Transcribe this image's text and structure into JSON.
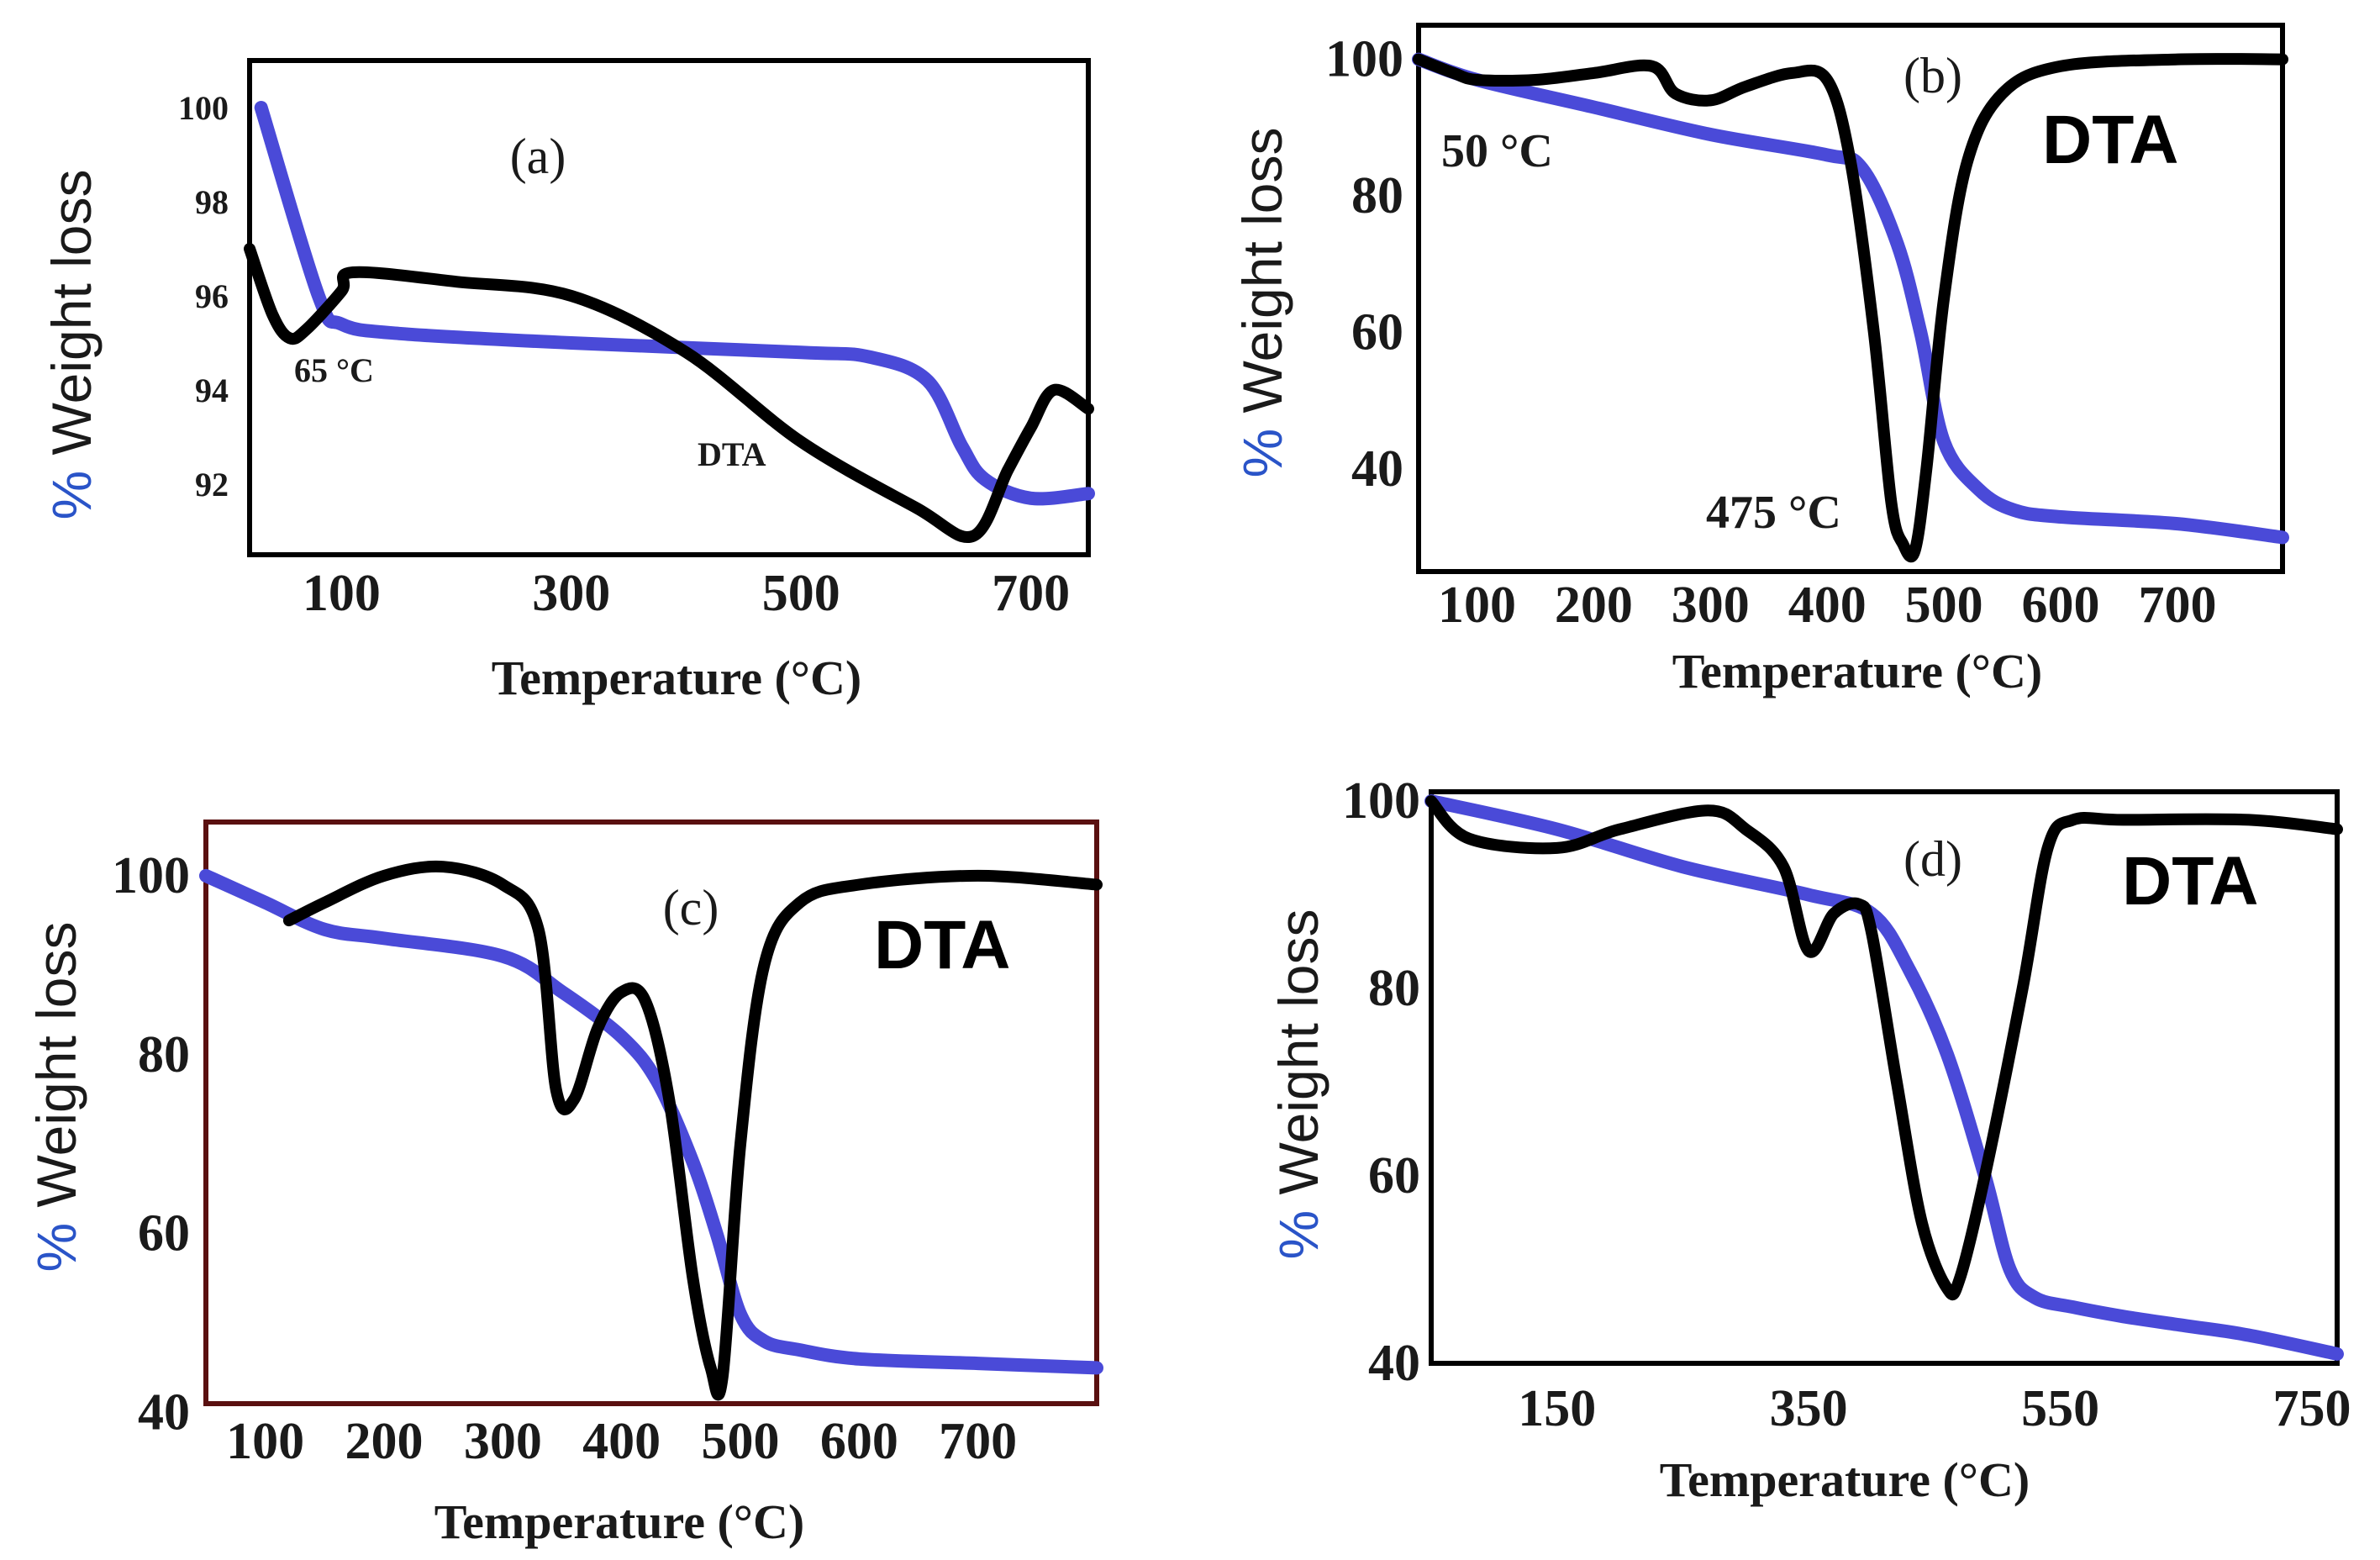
{
  "chart_data": [
    {
      "id": "a",
      "type": "line",
      "panel_label": "(a)",
      "xlabel": "Temperature (°C)",
      "ylabel": "% Weight loss",
      "xlim": [
        20,
        750
      ],
      "ylim": [
        90.5,
        101
      ],
      "xticks": [
        100,
        300,
        500,
        700
      ],
      "xtick_labels": [
        "100",
        "300",
        "500",
        "700"
      ],
      "yticks": [
        100,
        98,
        96,
        94,
        92
      ],
      "ytick_labels": [
        "100",
        "98",
        "96",
        "94",
        "92"
      ],
      "annotations": [
        {
          "text": "65 °C",
          "x": 60,
          "y": 94.6
        },
        {
          "text": "DTA",
          "x": 440,
          "y": 92.5
        }
      ],
      "series": [
        {
          "name": "TGA",
          "color": "#4a4ad8",
          "x": [
            30,
            80,
            100,
            150,
            300,
            500,
            560,
            610,
            640,
            660,
            700,
            750
          ],
          "y": [
            100,
            96,
            95.4,
            95.2,
            95.0,
            94.8,
            94.7,
            94.2,
            92.8,
            92.1,
            91.7,
            91.8
          ]
        },
        {
          "name": "DTA",
          "color": "#000000",
          "x": [
            20,
            40,
            55,
            70,
            100,
            110,
            200,
            300,
            400,
            500,
            600,
            650,
            680,
            700,
            720,
            750
          ],
          "y": [
            97,
            95.6,
            95.1,
            95.3,
            96.1,
            96.5,
            96.3,
            96.0,
            94.8,
            92.9,
            91.5,
            90.9,
            92.3,
            93.2,
            94.0,
            93.6
          ]
        }
      ]
    },
    {
      "id": "b",
      "type": "line",
      "panel_label": "(b)",
      "dta_label": "DTA",
      "xlabel": "Temperature (°C)",
      "ylabel": "% Weight loss",
      "xlim": [
        50,
        790
      ],
      "ylim": [
        25,
        105
      ],
      "xticks": [
        100,
        200,
        300,
        400,
        500,
        600,
        700
      ],
      "xtick_labels": [
        "100",
        "200",
        "300",
        "400",
        "500",
        "600",
        "700"
      ],
      "yticks": [
        100,
        80,
        60,
        40
      ],
      "ytick_labels": [
        "100",
        "80",
        "60",
        "40"
      ],
      "annotations": [
        {
          "text": "50 °C",
          "x": 60,
          "y": 88
        },
        {
          "text": "475 °C",
          "x": 390,
          "y": 29
        }
      ],
      "series": [
        {
          "name": "TGA",
          "color": "#4a4ad8",
          "x": [
            50,
            100,
            200,
            300,
            400,
            430,
            460,
            480,
            500,
            530,
            560,
            600,
            700,
            790
          ],
          "y": [
            100,
            97,
            93,
            89,
            86,
            84,
            73,
            60,
            44,
            37,
            34,
            33,
            32,
            30
          ]
        },
        {
          "name": "DTA",
          "color": "#000000",
          "x": [
            50,
            80,
            100,
            150,
            200,
            250,
            270,
            300,
            330,
            370,
            400,
            420,
            440,
            455,
            465,
            475,
            485,
            500,
            520,
            550,
            600,
            700,
            790
          ],
          "y": [
            100,
            98,
            97,
            97,
            98,
            99,
            95,
            94,
            96,
            98,
            97,
            85,
            60,
            35,
            29,
            28,
            40,
            65,
            85,
            95,
            99,
            100,
            100
          ]
        }
      ]
    },
    {
      "id": "c",
      "type": "line",
      "panel_label": "(c)",
      "dta_label": "DTA",
      "xlabel": "Temperature (°C)",
      "ylabel": "% Weight loss",
      "xlim": [
        50,
        800
      ],
      "ylim": [
        41,
        106
      ],
      "xticks": [
        100,
        200,
        300,
        400,
        500,
        600,
        700
      ],
      "xtick_labels": [
        "100",
        "200",
        "300",
        "400",
        "500",
        "600",
        "700"
      ],
      "yticks": [
        100,
        80,
        60,
        40
      ],
      "ytick_labels": [
        "100",
        "80",
        "60",
        "40"
      ],
      "series": [
        {
          "name": "TGA",
          "color": "#4a4ad8",
          "x": [
            50,
            100,
            150,
            200,
            300,
            350,
            400,
            430,
            460,
            480,
            500,
            520,
            550,
            600,
            700,
            800
          ],
          "y": [
            100,
            97,
            94,
            93,
            91,
            87,
            82,
            77,
            68,
            60,
            51,
            48,
            47,
            46,
            45.5,
            45
          ]
        },
        {
          "name": "DTA",
          "color": "#000000",
          "x": [
            120,
            150,
            200,
            250,
            300,
            330,
            345,
            360,
            380,
            400,
            420,
            440,
            460,
            475,
            485,
            500,
            520,
            550,
            600,
            700,
            800
          ],
          "y": [
            95,
            97,
            100,
            101,
            99,
            94,
            76,
            75,
            83,
            87,
            86,
            75,
            55,
            45,
            44,
            70,
            90,
            97,
            99,
            100,
            99
          ]
        }
      ]
    },
    {
      "id": "d",
      "type": "line",
      "panel_label": "(d)",
      "dta_label": "DTA",
      "xlabel": "Temperature (°C)",
      "ylabel": "% Weight loss",
      "xlim": [
        50,
        770
      ],
      "ylim": [
        40,
        101
      ],
      "xticks": [
        150,
        350,
        550,
        750
      ],
      "xtick_labels": [
        "150",
        "350",
        "550",
        "750"
      ],
      "yticks": [
        100,
        80,
        60,
        40
      ],
      "ytick_labels": [
        "100",
        "80",
        "60",
        "40"
      ],
      "series": [
        {
          "name": "TGA",
          "color": "#4a4ad8",
          "x": [
            50,
            150,
            250,
            350,
            400,
            430,
            460,
            490,
            510,
            530,
            560,
            600,
            650,
            700,
            770
          ],
          "y": [
            100,
            97,
            93,
            90,
            88,
            82,
            73,
            60,
            50,
            47,
            46,
            45,
            44,
            43,
            41
          ]
        },
        {
          "name": "DTA",
          "color": "#000000",
          "x": [
            50,
            80,
            150,
            200,
            270,
            300,
            330,
            350,
            370,
            390,
            400,
            420,
            440,
            460,
            470,
            490,
            520,
            540,
            560,
            600,
            700,
            770
          ],
          "y": [
            100,
            96,
            95,
            97,
            99,
            97,
            93,
            84,
            88,
            89,
            86,
            70,
            55,
            48,
            49,
            60,
            80,
            95,
            98,
            98,
            98,
            97
          ]
        }
      ]
    }
  ]
}
